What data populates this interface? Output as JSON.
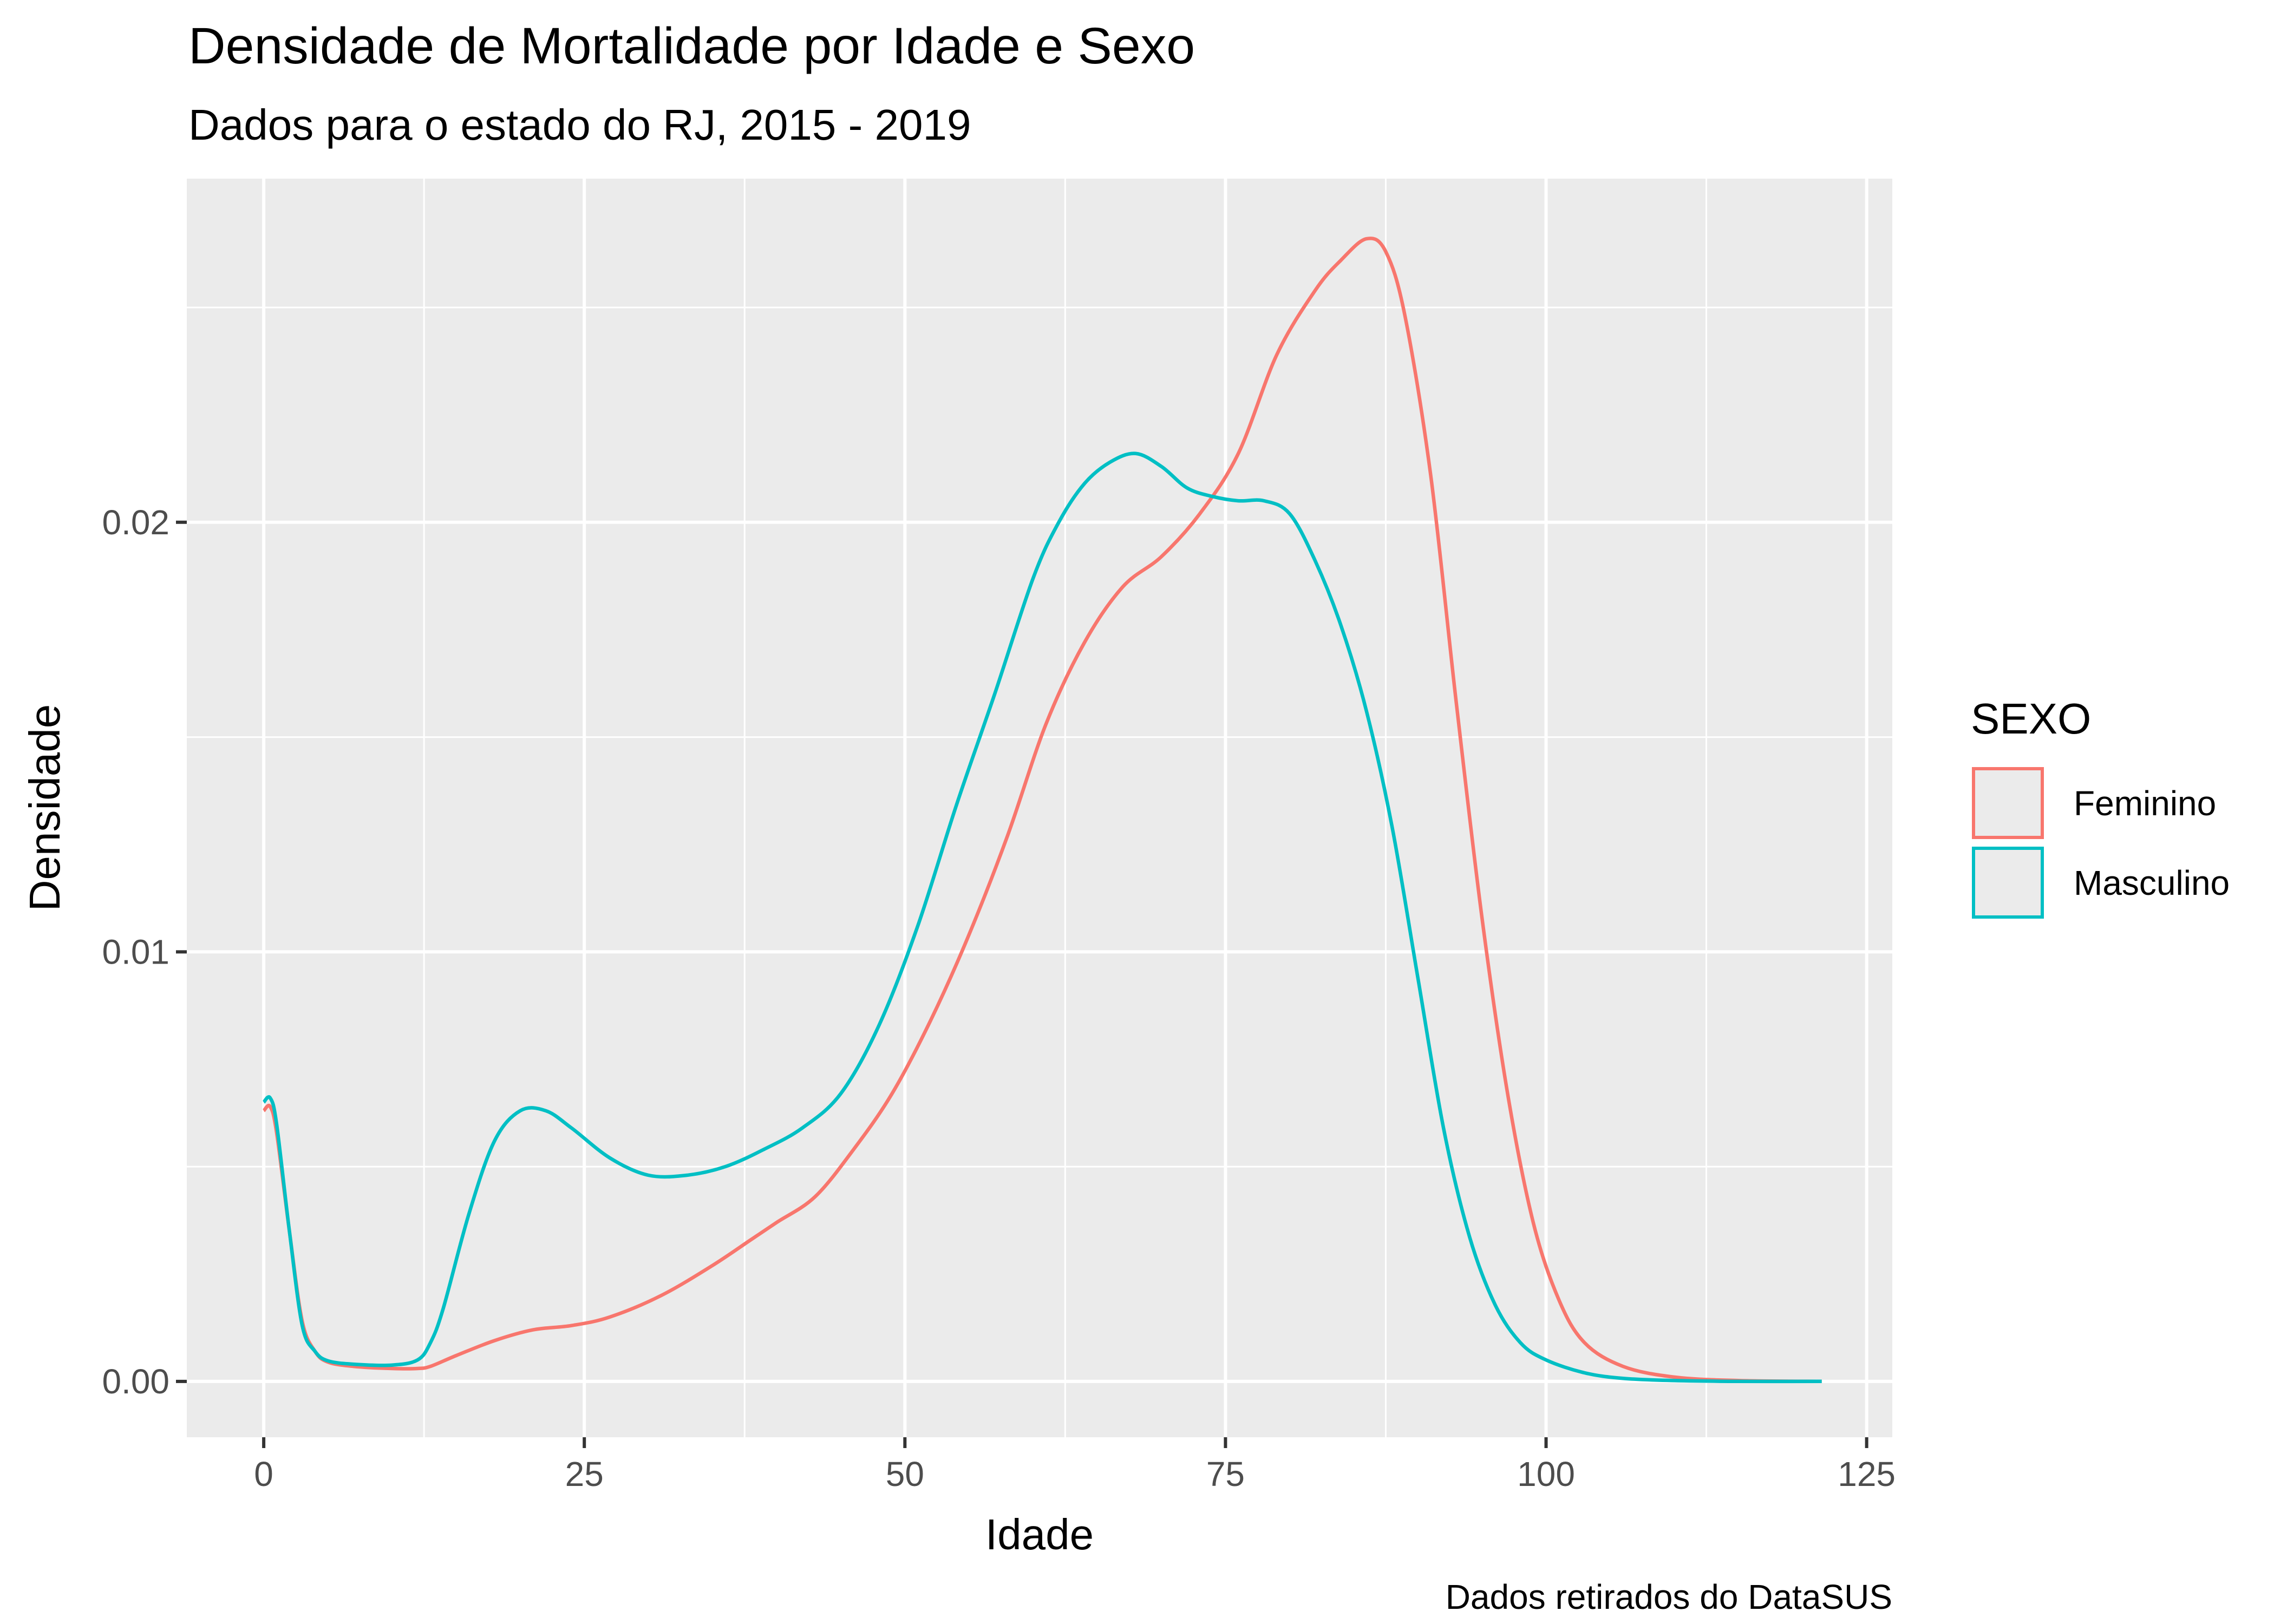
{
  "chart_data": {
    "type": "line",
    "title": "Densidade de Mortalidade por Idade e Sexo",
    "subtitle": "Dados para o estado do RJ, 2015 - 2019",
    "caption": "Dados retirados do DataSUS",
    "xlabel": "Idade",
    "ylabel": "Densidade",
    "xlim": [
      -6,
      127
    ],
    "ylim": [
      -0.0013,
      0.028
    ],
    "x_ticks": [
      0,
      25,
      50,
      75,
      100,
      125
    ],
    "x_tick_labels": [
      "0",
      "25",
      "50",
      "75",
      "100",
      "125"
    ],
    "x_minor_ticks": [
      12.5,
      37.5,
      62.5,
      87.5,
      112.5
    ],
    "y_ticks": [
      0,
      0.01,
      0.02
    ],
    "y_tick_labels": [
      "0.00",
      "0.01",
      "0.02"
    ],
    "y_minor_ticks": [
      0.005,
      0.015,
      0.025
    ],
    "grid": true,
    "background": "#EBEBEB",
    "legend": {
      "title": "SEXO",
      "position": "right",
      "entries": [
        "Feminino",
        "Masculino"
      ]
    },
    "series": [
      {
        "name": "Feminino",
        "color": "#F8766D",
        "points": [
          [
            0,
            0.0063
          ],
          [
            0.5,
            0.0064
          ],
          [
            1,
            0.0058
          ],
          [
            2,
            0.0035
          ],
          [
            3,
            0.0014
          ],
          [
            4,
            0.0007
          ],
          [
            5,
            0.00045
          ],
          [
            7,
            0.00035
          ],
          [
            10,
            0.0003
          ],
          [
            12,
            0.0003
          ],
          [
            13,
            0.00035
          ],
          [
            15,
            0.0006
          ],
          [
            18,
            0.00095
          ],
          [
            21,
            0.0012
          ],
          [
            24,
            0.0013
          ],
          [
            27,
            0.0015
          ],
          [
            31,
            0.002
          ],
          [
            35,
            0.0027
          ],
          [
            38,
            0.0033
          ],
          [
            40,
            0.0037
          ],
          [
            43,
            0.0043
          ],
          [
            46,
            0.0054
          ],
          [
            49,
            0.0067
          ],
          [
            52,
            0.0084
          ],
          [
            55,
            0.0104
          ],
          [
            58,
            0.0127
          ],
          [
            61,
            0.0153
          ],
          [
            64,
            0.0172
          ],
          [
            67,
            0.0185
          ],
          [
            70,
            0.0192
          ],
          [
            73,
            0.0202
          ],
          [
            76,
            0.0216
          ],
          [
            79,
            0.0239
          ],
          [
            82,
            0.0254
          ],
          [
            84,
            0.0261
          ],
          [
            86,
            0.0266
          ],
          [
            87.5,
            0.0263
          ],
          [
            89,
            0.0248
          ],
          [
            91,
            0.0211
          ],
          [
            93,
            0.0158
          ],
          [
            95,
            0.0108
          ],
          [
            97,
            0.0067
          ],
          [
            99,
            0.0037
          ],
          [
            101,
            0.0019
          ],
          [
            103,
            0.0009
          ],
          [
            106,
            0.00035
          ],
          [
            110,
            0.0001
          ],
          [
            115,
            2e-05
          ],
          [
            121.5,
            0
          ]
        ]
      },
      {
        "name": "Masculino",
        "color": "#00BFC4",
        "points": [
          [
            0,
            0.0065
          ],
          [
            0.5,
            0.0066
          ],
          [
            1,
            0.006
          ],
          [
            2,
            0.0035
          ],
          [
            3,
            0.0013
          ],
          [
            4,
            0.0007
          ],
          [
            5,
            0.00048
          ],
          [
            7,
            0.0004
          ],
          [
            10,
            0.00038
          ],
          [
            12,
            0.0005
          ],
          [
            13,
            0.0009
          ],
          [
            14,
            0.0017
          ],
          [
            16,
            0.0039
          ],
          [
            18,
            0.0056
          ],
          [
            20,
            0.0063
          ],
          [
            22,
            0.0063
          ],
          [
            24,
            0.0059
          ],
          [
            27,
            0.0052
          ],
          [
            30,
            0.0048
          ],
          [
            33,
            0.0048
          ],
          [
            36,
            0.005
          ],
          [
            39,
            0.0054
          ],
          [
            42,
            0.0059
          ],
          [
            45,
            0.0067
          ],
          [
            48,
            0.0083
          ],
          [
            51,
            0.0106
          ],
          [
            54,
            0.0134
          ],
          [
            57,
            0.016
          ],
          [
            60,
            0.0187
          ],
          [
            62,
            0.02
          ],
          [
            64,
            0.0209
          ],
          [
            66,
            0.0214
          ],
          [
            68,
            0.0216
          ],
          [
            70,
            0.0213
          ],
          [
            72,
            0.0208
          ],
          [
            74,
            0.0206
          ],
          [
            76,
            0.0205
          ],
          [
            78,
            0.0205
          ],
          [
            80,
            0.0202
          ],
          [
            82,
            0.0191
          ],
          [
            84,
            0.0176
          ],
          [
            86,
            0.0156
          ],
          [
            88,
            0.0129
          ],
          [
            90,
            0.0094
          ],
          [
            92,
            0.0059
          ],
          [
            94,
            0.0034
          ],
          [
            96,
            0.0018
          ],
          [
            98,
            0.0009
          ],
          [
            100,
            0.0005
          ],
          [
            103,
            0.0002
          ],
          [
            106,
            7e-05
          ],
          [
            110,
            2e-05
          ],
          [
            115,
            0
          ],
          [
            121.5,
            0
          ]
        ]
      }
    ]
  }
}
